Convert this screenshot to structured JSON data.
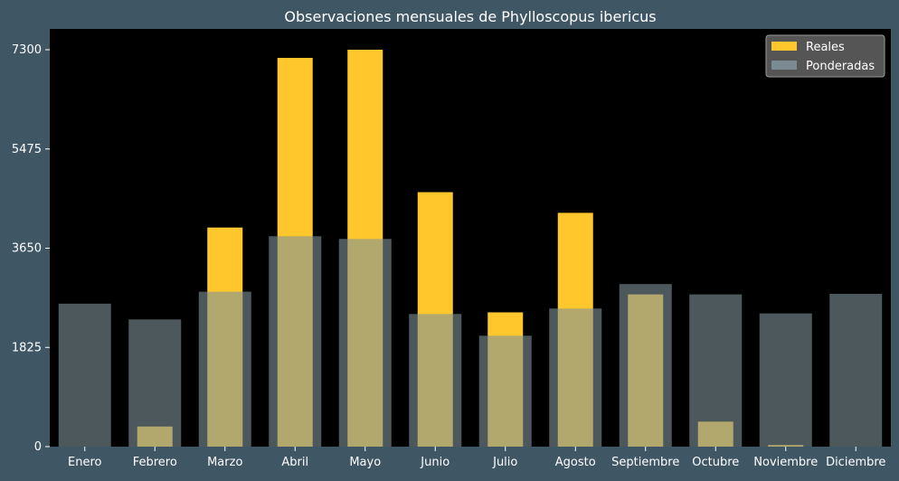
{
  "figure": {
    "background": "#3f5665"
  },
  "chart_data": {
    "type": "bar",
    "title": "Observaciones mensuales de Phylloscopus ibericus",
    "xlabel": "",
    "ylabel": "",
    "categories": [
      "Enero",
      "Febrero",
      "Marzo",
      "Abril",
      "Mayo",
      "Junio",
      "Julio",
      "Agosto",
      "Septiembre",
      "Octubre",
      "Noviembre",
      "Diciembre"
    ],
    "series": [
      {
        "name": "Reales",
        "color": "#ffc72c",
        "values": [
          0,
          370,
          4030,
          7150,
          7300,
          4680,
          2470,
          4300,
          2800,
          460,
          30,
          0
        ]
      },
      {
        "name": "Ponderadas",
        "color": "#7f9399",
        "opacity": 0.6,
        "values": [
          2630,
          2340,
          2850,
          3870,
          3820,
          2440,
          2040,
          2540,
          2990,
          2800,
          2450,
          2810
        ]
      }
    ],
    "yticks": [
      0,
      1825,
      3650,
      5475,
      7300
    ],
    "ytick_labels": [
      "0",
      "1825",
      "3650",
      "5475",
      "7300"
    ],
    "ylim": [
      0,
      7300
    ],
    "grid": false,
    "legend_position": "top-right",
    "plot_background": "#000000",
    "text_color": "#ffffff"
  }
}
